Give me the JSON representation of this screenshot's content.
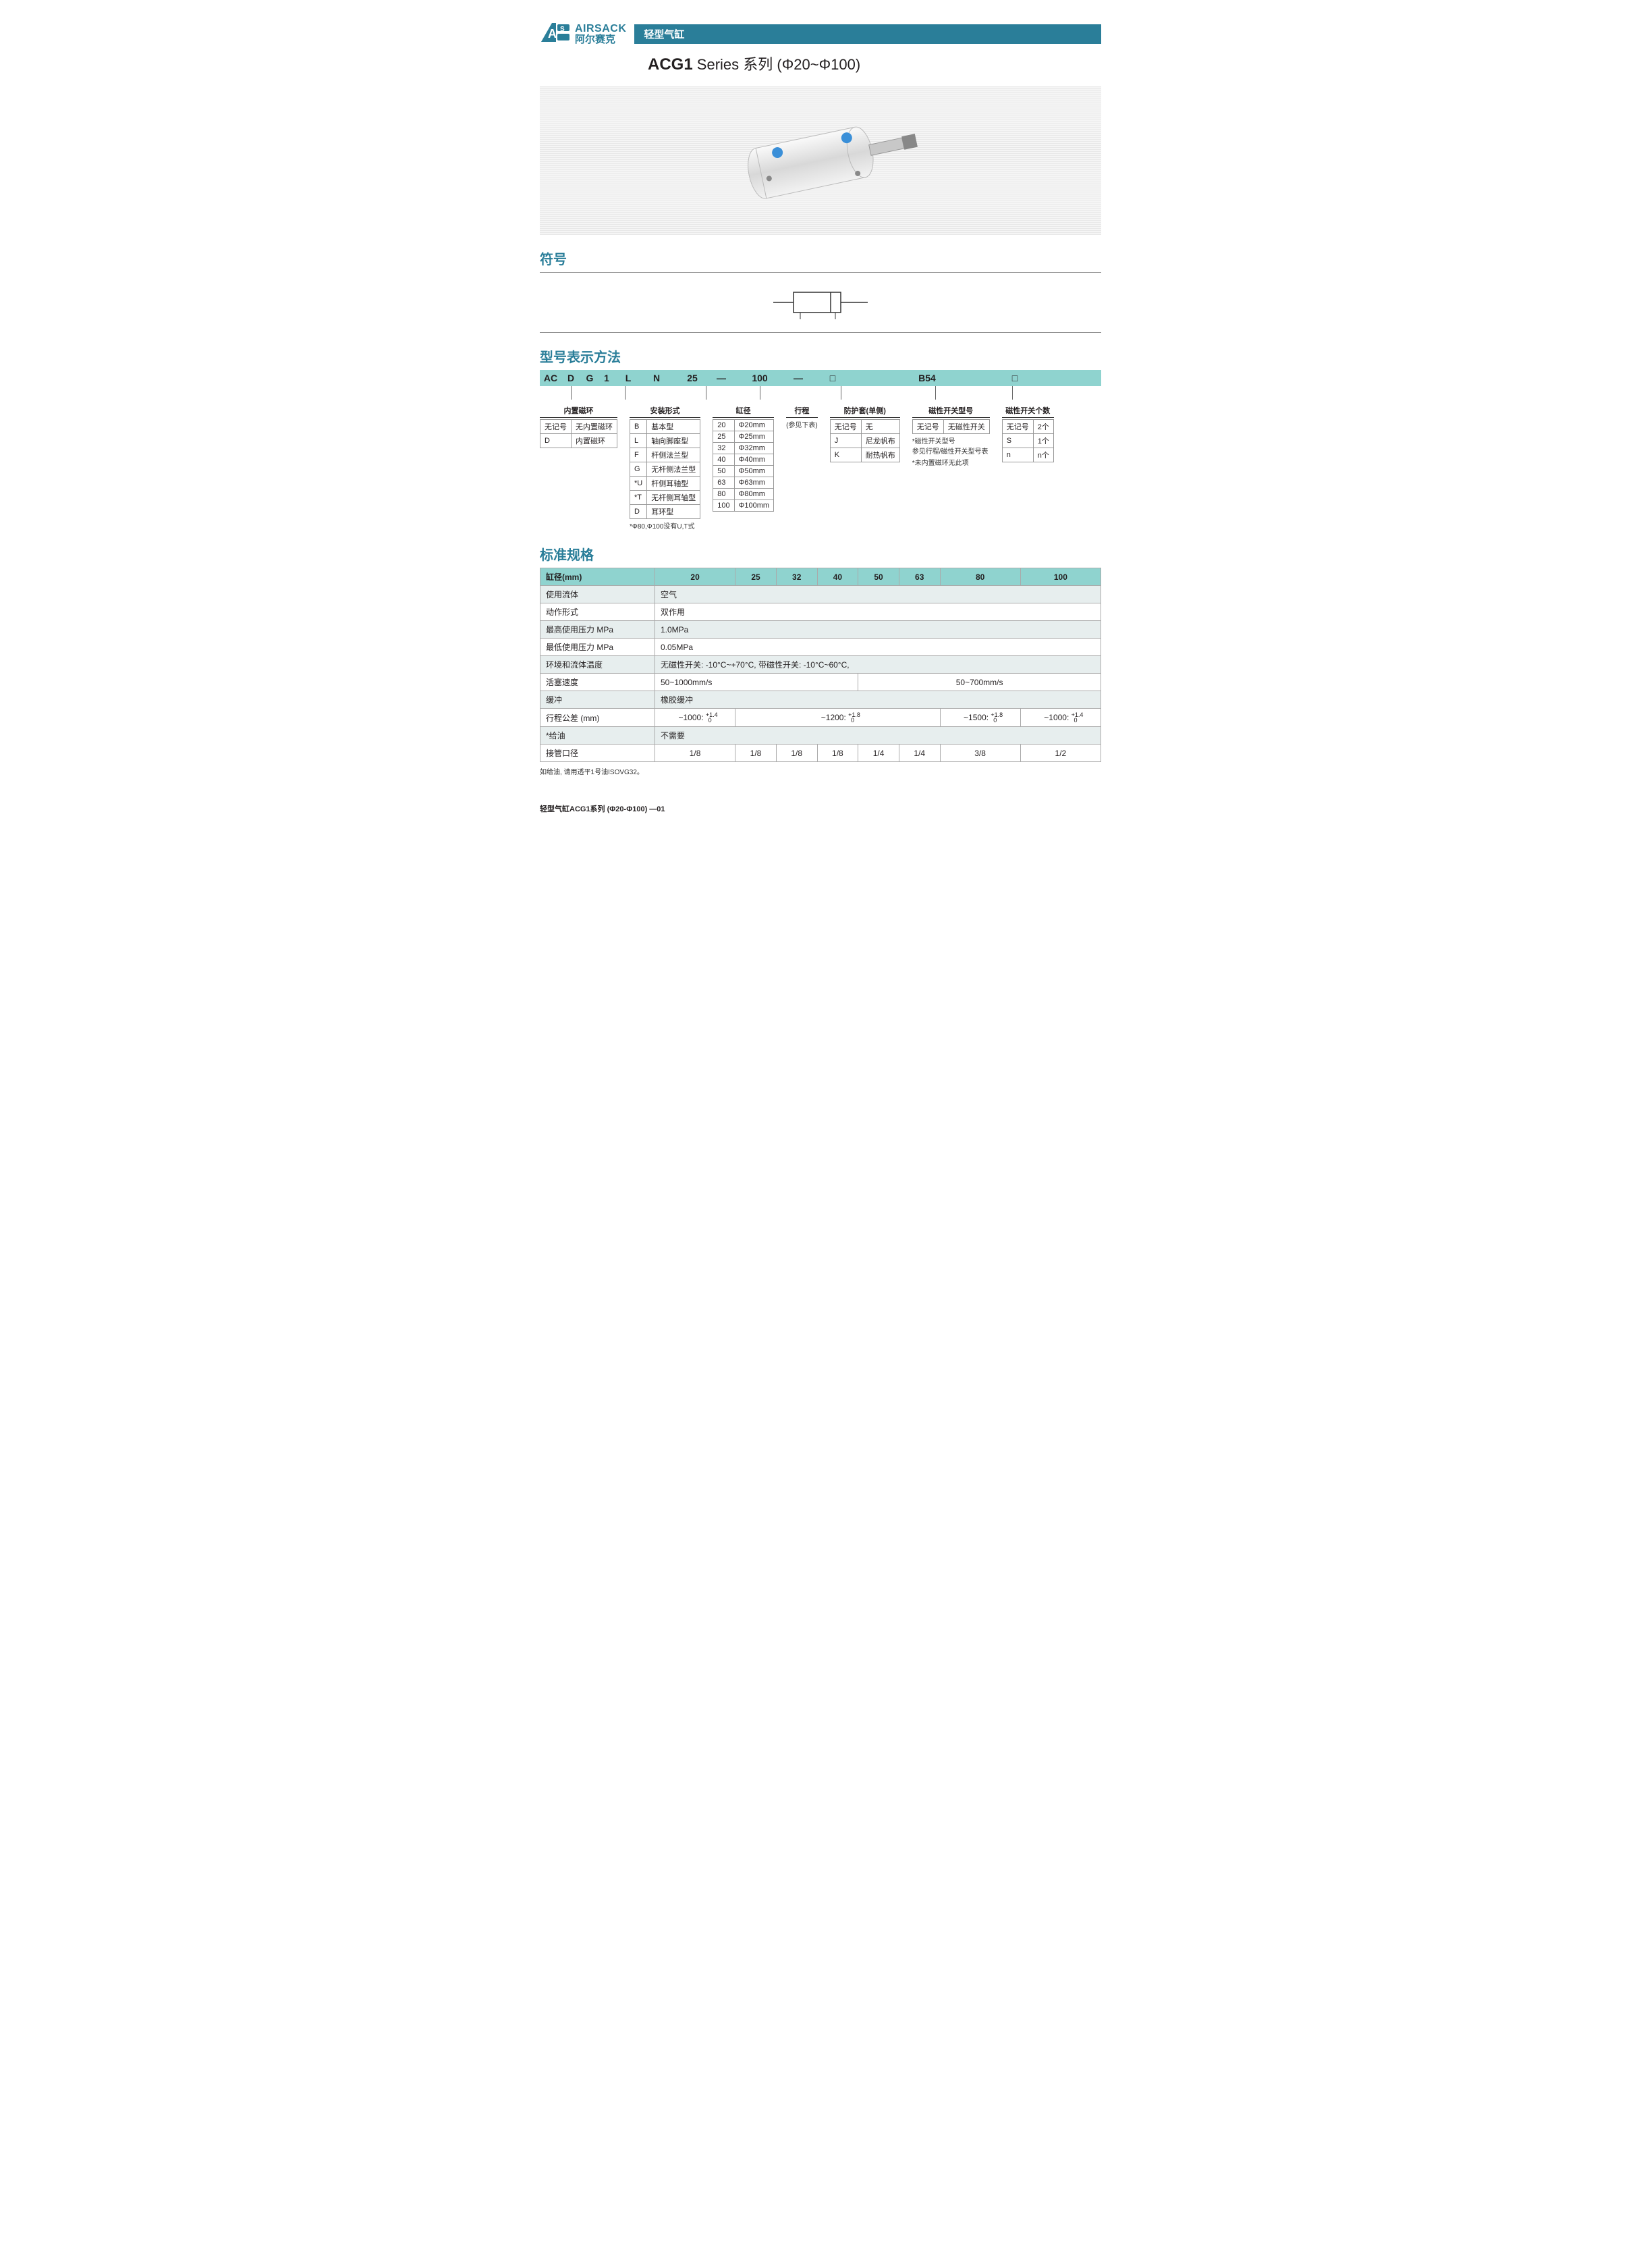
{
  "brand": {
    "en": "AIRSACK",
    "cn": "阿尔赛克"
  },
  "title_bar": "轻型气缸",
  "series": {
    "strong": "ACG1",
    "rest": " Series 系列 (Φ20~Φ100)"
  },
  "sections": {
    "symbol": "符号",
    "model": "型号表示方法",
    "spec": "标准规格"
  },
  "code_segments": [
    "AC",
    "D",
    "G",
    "1",
    "L",
    "N",
    "25",
    "100",
    "□",
    "B54",
    "□"
  ],
  "dash": "—",
  "opt": {
    "magnet": {
      "title": "内置磁环",
      "rows": [
        [
          "无记号",
          "无内置磁环"
        ],
        [
          "D",
          "内置磁环"
        ]
      ]
    },
    "mount": {
      "title": "安装形式",
      "rows": [
        [
          "B",
          "基本型"
        ],
        [
          "L",
          "轴向脚座型"
        ],
        [
          "F",
          "杆侧法兰型"
        ],
        [
          "G",
          "无杆侧法兰型"
        ],
        [
          "*U",
          "杆侧耳轴型"
        ],
        [
          "*T",
          "无杆侧耳轴型"
        ],
        [
          "D",
          "耳环型"
        ]
      ],
      "note": "*Φ80,Φ100没有U,T式"
    },
    "bore": {
      "title": "缸径",
      "rows": [
        [
          "20",
          "Φ20mm"
        ],
        [
          "25",
          "Φ25mm"
        ],
        [
          "32",
          "Φ32mm"
        ],
        [
          "40",
          "Φ40mm"
        ],
        [
          "50",
          "Φ50mm"
        ],
        [
          "63",
          "Φ63mm"
        ],
        [
          "80",
          "Φ80mm"
        ],
        [
          "100",
          "Φ100mm"
        ]
      ]
    },
    "stroke": {
      "title": "行程",
      "note": "(参见下表)"
    },
    "protect": {
      "title": "防护套(单侧)",
      "rows": [
        [
          "无记号",
          "无"
        ],
        [
          "J",
          "尼龙帆布"
        ],
        [
          "K",
          "耐热帆布"
        ]
      ]
    },
    "switch": {
      "title": "磁性开关型号",
      "rows": [
        [
          "无记号",
          "无磁性开关"
        ]
      ],
      "note1": "*磁性开关型号\n参见行程/磁性开关型号表",
      "note2": "*未内置磁环无此项"
    },
    "switch_num": {
      "title": "磁性开关个数",
      "rows": [
        [
          "无记号",
          "2个"
        ],
        [
          "S",
          "1个"
        ],
        [
          "n",
          "n个"
        ]
      ]
    }
  },
  "spec": {
    "header": [
      "缸径(mm)",
      "20",
      "25",
      "32",
      "40",
      "50",
      "63",
      "80",
      "100"
    ],
    "rows": [
      {
        "label": "使用流体",
        "cells": [
          {
            "text": "空气",
            "span": 8
          }
        ],
        "shade": true
      },
      {
        "label": "动作形式",
        "cells": [
          {
            "text": "双作用",
            "span": 8
          }
        ],
        "shade": false
      },
      {
        "label": "最高使用压力 MPa",
        "cells": [
          {
            "text": "1.0MPa",
            "span": 8
          }
        ],
        "shade": true
      },
      {
        "label": "最低使用压力 MPa",
        "cells": [
          {
            "text": "0.05MPa",
            "span": 8
          }
        ],
        "shade": false
      },
      {
        "label": "环境和流体温度",
        "cells": [
          {
            "text": "无磁性开关: -10°C~+70°C, 带磁性开关: -10°C~60°C,",
            "span": 8
          }
        ],
        "shade": true
      },
      {
        "label": "活塞速度",
        "cells": [
          {
            "text": "50~1000mm/s",
            "span": 4
          },
          {
            "text": "50~700mm/s",
            "span": 4,
            "center": true
          }
        ],
        "shade": false
      },
      {
        "label": "缓冲",
        "cells": [
          {
            "text": "橡胶缓冲",
            "span": 8
          }
        ],
        "shade": true
      },
      {
        "label": "行程公差 (mm)",
        "cells": [
          {
            "tol": "~1000:",
            "up": "+1.4",
            "dn": "0",
            "span": 1
          },
          {
            "tol": "~1200:",
            "up": "+1.8",
            "dn": "0",
            "span": 5
          },
          {
            "tol": "~1500:",
            "up": "+1.8",
            "dn": "0",
            "span": 1
          },
          {
            "tol": "~1000:",
            "up": "+1.4",
            "dn": "0",
            "span": 1
          }
        ],
        "shade": false
      },
      {
        "label": "*给油",
        "cells": [
          {
            "text": "不需要",
            "span": 8
          }
        ],
        "shade": true
      },
      {
        "label": "接管口径",
        "cells": [
          {
            "text": "1/8",
            "span": 1,
            "center": true
          },
          {
            "text": "1/8",
            "span": 1,
            "center": true
          },
          {
            "text": "1/8",
            "span": 1,
            "center": true
          },
          {
            "text": "1/8",
            "span": 1,
            "center": true
          },
          {
            "text": "1/4",
            "span": 1,
            "center": true
          },
          {
            "text": "1/4",
            "span": 1,
            "center": true
          },
          {
            "text": "3/8",
            "span": 1,
            "center": true
          },
          {
            "text": "1/2",
            "span": 1,
            "center": true
          }
        ],
        "shade": false
      }
    ],
    "note": "如给油, 请用透平1号油ISOVG32。"
  },
  "footer": "轻型气缸ACG1系列 (Φ20-Φ100) —01",
  "colors": {
    "brand": "#2a7e99",
    "accent": "#8fd3cf",
    "text": "#231f20",
    "grid": "#aaaaaa",
    "shade": "#e7eeee"
  }
}
